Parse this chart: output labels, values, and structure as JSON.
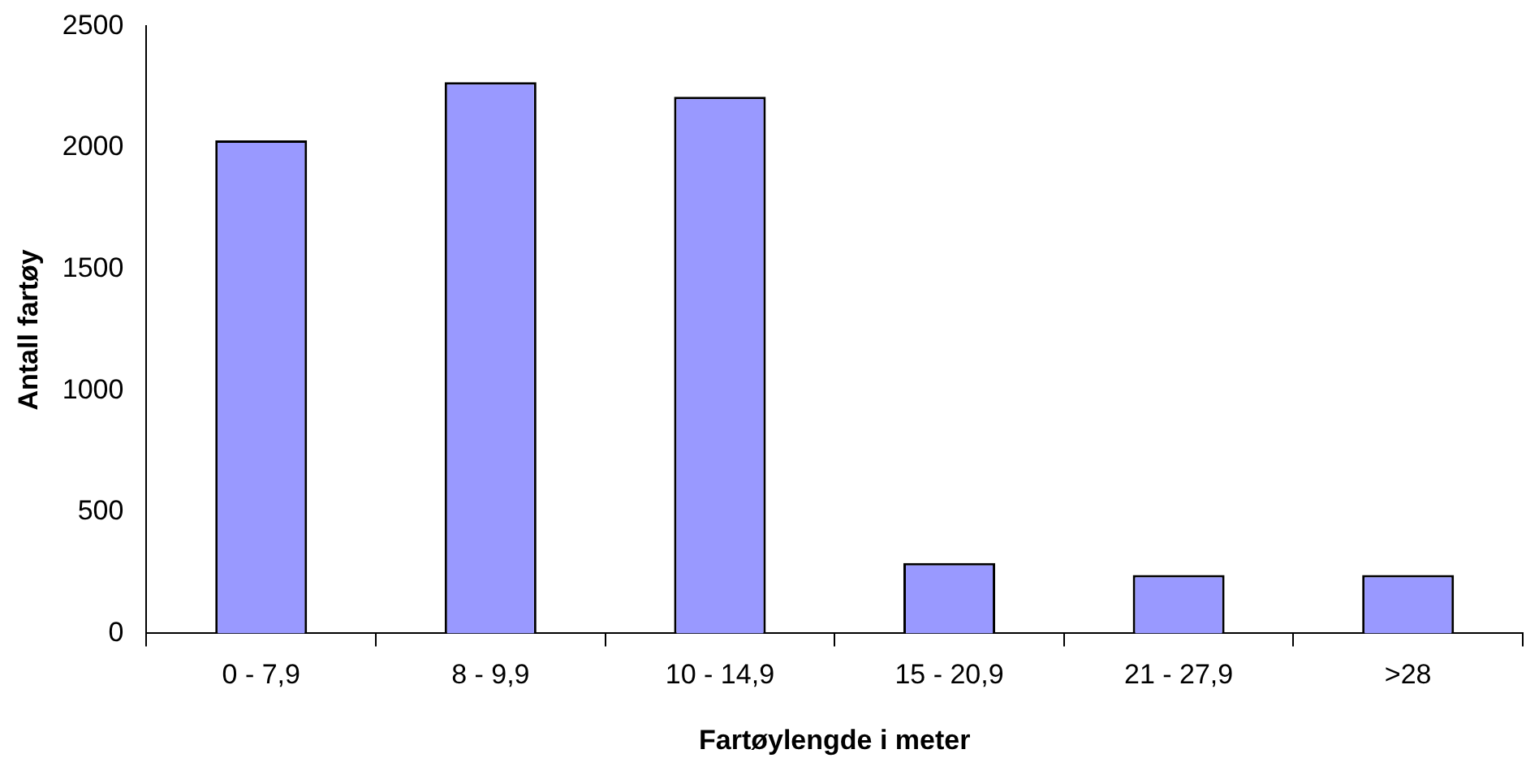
{
  "chart_data": {
    "type": "bar",
    "xlabel": "Fartøylengde i meter",
    "ylabel": "Antall fartøy",
    "categories": [
      "0 - 7,9",
      "8 - 9,9",
      "10 - 14,9",
      "15 - 20,9",
      "21 - 27,9",
      ">28"
    ],
    "values": [
      2030,
      2270,
      2210,
      290,
      240,
      240
    ],
    "color": "#9999ff",
    "ylim": [
      0,
      2500
    ],
    "yticks": [
      0,
      500,
      1000,
      1500,
      2000,
      2500
    ],
    "grid": false,
    "legend": false
  }
}
